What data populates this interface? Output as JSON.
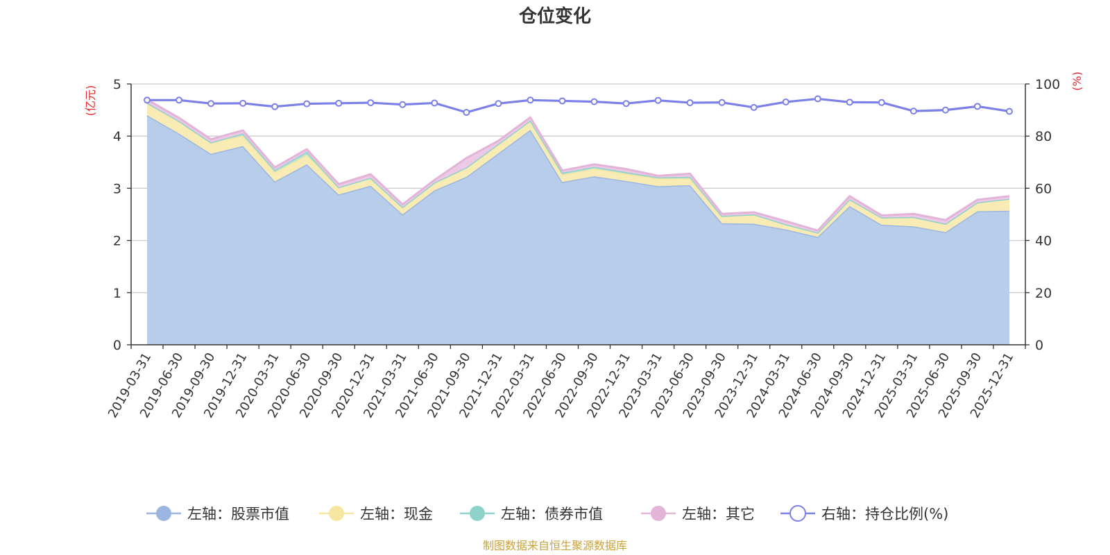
{
  "chart_data": {
    "type": "area",
    "title": "仓位变化",
    "left_axis": {
      "label": "(亿元)",
      "ylim": [
        0,
        5
      ],
      "ticks": [
        0,
        1,
        2,
        3,
        4,
        5
      ]
    },
    "right_axis": {
      "label": "(%)",
      "ylim": [
        0,
        100
      ],
      "ticks": [
        0,
        20,
        40,
        60,
        80,
        100
      ]
    },
    "categories": [
      "2019-03-31",
      "2019-06-30",
      "2019-09-30",
      "2019-12-31",
      "2020-03-31",
      "2020-06-30",
      "2020-09-30",
      "2020-12-31",
      "2021-03-31",
      "2021-06-30",
      "2021-09-30",
      "2021-12-31",
      "2022-03-31",
      "2022-06-30",
      "2022-09-30",
      "2022-12-31",
      "2023-03-31",
      "2023-06-30",
      "2023-09-30",
      "2023-12-31",
      "2024-03-31",
      "2024-06-30",
      "2024-09-30",
      "2024-12-31",
      "2025-03-31",
      "2025-06-30",
      "2025-09-30",
      "2025-12-31"
    ],
    "grid": true,
    "legend_position": "bottom",
    "series": [
      {
        "name": "左轴：股票市值",
        "axis": "left",
        "stack": true,
        "color": "#9bb6e0",
        "fill": "#b8cdea",
        "values": [
          4.4,
          4.05,
          3.66,
          3.81,
          3.13,
          3.46,
          2.88,
          3.05,
          2.5,
          2.96,
          3.22,
          3.67,
          4.12,
          3.12,
          3.23,
          3.14,
          3.04,
          3.06,
          2.33,
          2.32,
          2.21,
          2.07,
          2.66,
          2.3,
          2.27,
          2.16,
          2.56,
          2.57
        ]
      },
      {
        "name": "左轴：现金",
        "axis": "left",
        "stack": true,
        "color": "#f5e6a0",
        "fill": "#f8ebb4",
        "values": [
          0.24,
          0.24,
          0.22,
          0.2,
          0.18,
          0.18,
          0.14,
          0.15,
          0.14,
          0.15,
          0.18,
          0.18,
          0.18,
          0.14,
          0.15,
          0.14,
          0.15,
          0.13,
          0.14,
          0.18,
          0.1,
          0.08,
          0.13,
          0.14,
          0.18,
          0.16,
          0.17,
          0.23
        ]
      },
      {
        "name": "左轴：债券市值",
        "axis": "left",
        "stack": true,
        "color": "#8fd1cb",
        "fill": "#b3e0da",
        "values": [
          0,
          0,
          0,
          0.04,
          0.04,
          0.06,
          0,
          0,
          0,
          0,
          0,
          0,
          0,
          0.04,
          0.03,
          0.03,
          0.02,
          0.03,
          0,
          0,
          0,
          0,
          0,
          0,
          0,
          0,
          0,
          0
        ]
      },
      {
        "name": "左轴：其它",
        "axis": "left",
        "stack": true,
        "color": "#e2b4d8",
        "fill": "#ecc9e4",
        "values": [
          0.06,
          0.06,
          0.06,
          0.06,
          0.05,
          0.05,
          0.06,
          0.07,
          0.05,
          0.05,
          0.18,
          0.06,
          0.06,
          0.04,
          0.05,
          0.06,
          0.03,
          0.06,
          0.04,
          0.04,
          0.06,
          0.04,
          0.06,
          0.04,
          0.06,
          0.07,
          0.05,
          0.05
        ]
      },
      {
        "name": "右轴：持仓比例(%)",
        "axis": "right",
        "stack": false,
        "color": "#7b7fe8",
        "fill": "#ffffff",
        "values": [
          93.8,
          93.8,
          92.5,
          92.6,
          91.3,
          92.4,
          92.6,
          92.8,
          92.1,
          92.7,
          89.1,
          92.5,
          93.8,
          93.5,
          93.2,
          92.5,
          93.7,
          92.8,
          92.9,
          91,
          93.1,
          94.3,
          93,
          92.9,
          89.6,
          90,
          91.4,
          89.5
        ]
      }
    ]
  },
  "footer": {
    "source": "制图数据来自恒生聚源数据库"
  },
  "colors": {
    "axis_label": "#e8232a",
    "source_text": "#c8a23c",
    "grid": "#cccccc",
    "axis_line": "#333333"
  }
}
